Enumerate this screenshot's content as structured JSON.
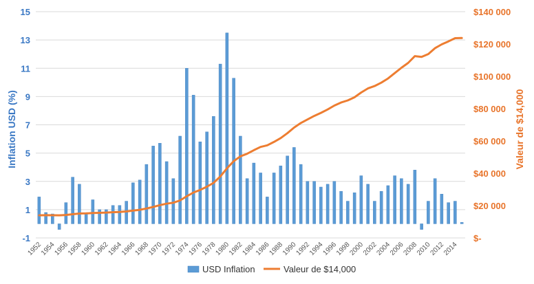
{
  "chart_data": {
    "type": "bar",
    "ylabel_left": "Inflation USD (%)",
    "ylabel_right": "Valeur de $14,000",
    "y_left_lim": [
      -1,
      15
    ],
    "y_left_ticks": [
      "-1",
      "1",
      "3",
      "5",
      "7",
      "9",
      "11",
      "13",
      "15"
    ],
    "y_right_lim": [
      0,
      140000
    ],
    "y_right_ticks": [
      "$-",
      "$20 000",
      "$40 000",
      "$60 000",
      "$80 000",
      "$100 000",
      "$120 000",
      "$140 000"
    ],
    "grid": true,
    "legend_position": "bottom",
    "x": [
      1952,
      1953,
      1954,
      1955,
      1956,
      1957,
      1958,
      1959,
      1960,
      1961,
      1962,
      1963,
      1964,
      1965,
      1966,
      1967,
      1968,
      1969,
      1970,
      1971,
      1972,
      1973,
      1974,
      1975,
      1976,
      1977,
      1978,
      1979,
      1980,
      1981,
      1982,
      1983,
      1984,
      1985,
      1986,
      1987,
      1988,
      1989,
      1990,
      1991,
      1992,
      1993,
      1994,
      1995,
      1996,
      1997,
      1998,
      1999,
      2000,
      2001,
      2002,
      2003,
      2004,
      2005,
      2006,
      2007,
      2008,
      2009,
      2010,
      2011,
      2012,
      2013,
      2014,
      2015
    ],
    "x_tick_labels": [
      "1952",
      "1954",
      "1956",
      "1958",
      "1960",
      "1962",
      "1964",
      "1966",
      "1968",
      "1970",
      "1972",
      "1974",
      "1976",
      "1978",
      "1980",
      "1982",
      "1984",
      "1986",
      "1988",
      "1990",
      "1992",
      "1994",
      "1996",
      "1998",
      "2000",
      "2002",
      "2004",
      "2006",
      "2008",
      "2010",
      "2012",
      "2014"
    ],
    "series": [
      {
        "name": "USD Inflation",
        "type": "bar",
        "axis": "left",
        "color": "#5b9bd5",
        "values": [
          1.9,
          0.8,
          0.7,
          -0.4,
          1.5,
          3.3,
          2.8,
          0.7,
          1.7,
          1.0,
          1.0,
          1.3,
          1.3,
          1.6,
          2.9,
          3.1,
          4.2,
          5.5,
          5.7,
          4.4,
          3.2,
          6.2,
          11.0,
          9.1,
          5.8,
          6.5,
          7.6,
          11.3,
          13.5,
          10.3,
          6.2,
          3.2,
          4.3,
          3.6,
          1.9,
          3.6,
          4.1,
          4.8,
          5.4,
          4.2,
          3.0,
          3.0,
          2.6,
          2.8,
          3.0,
          2.3,
          1.6,
          2.2,
          3.4,
          2.8,
          1.6,
          2.3,
          2.7,
          3.4,
          3.2,
          2.8,
          3.8,
          -0.4,
          1.6,
          3.2,
          2.1,
          1.5,
          1.6,
          0.1
        ]
      },
      {
        "name": "Valeur de $14,000",
        "type": "line",
        "axis": "right",
        "color": "#ed7d31",
        "values": [
          14000,
          14100,
          14050,
          14000,
          14200,
          14700,
          15100,
          15200,
          15400,
          15550,
          15700,
          15900,
          16100,
          16400,
          16900,
          17400,
          18200,
          19200,
          20300,
          21200,
          21800,
          23200,
          25800,
          28100,
          29700,
          31700,
          34100,
          38000,
          43100,
          47500,
          50500,
          52100,
          54300,
          56300,
          57300,
          59400,
          61800,
          64800,
          68300,
          71100,
          73300,
          75500,
          77400,
          79500,
          81900,
          83800,
          85100,
          87000,
          90000,
          92500,
          94000,
          96100,
          98700,
          102000,
          105300,
          108300,
          112500,
          112000,
          113800,
          117400,
          119800,
          121600,
          123600,
          123700
        ]
      }
    ]
  }
}
